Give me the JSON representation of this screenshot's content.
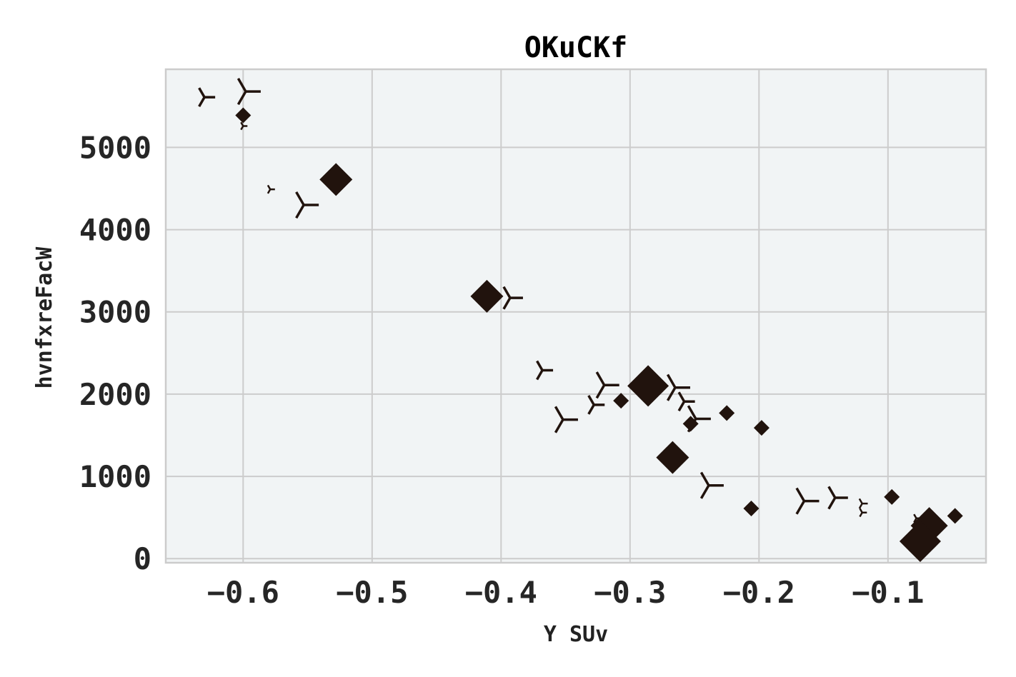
{
  "chart_data": {
    "type": "scatter",
    "title": "OKuCKf",
    "xlabel": "Y SUv",
    "ylabel": "hvnfxreFacW",
    "xlim": [
      -0.66,
      -0.024
    ],
    "ylim": [
      -50,
      5950
    ],
    "xticks": [
      -0.6,
      -0.5,
      -0.4,
      -0.3,
      -0.2,
      -0.1
    ],
    "xtick_labels": [
      "−0.6",
      "−0.5",
      "−0.4",
      "−0.3",
      "−0.2",
      "−0.1"
    ],
    "yticks": [
      0,
      1000,
      2000,
      3000,
      4000,
      5000
    ],
    "ytick_labels": [
      "0",
      "1000",
      "2000",
      "3000",
      "4000",
      "5000"
    ],
    "grid": true,
    "marker_color": "#21130d",
    "series": [
      {
        "marker": "diamond",
        "points": [
          {
            "x": -0.6,
            "y": 5390,
            "size": 1
          },
          {
            "x": -0.528,
            "y": 4610,
            "size": 3
          },
          {
            "x": -0.411,
            "y": 3190,
            "size": 3
          },
          {
            "x": -0.286,
            "y": 2100,
            "size": 4
          },
          {
            "x": -0.307,
            "y": 1920,
            "size": 1
          },
          {
            "x": -0.267,
            "y": 1230,
            "size": 3
          },
          {
            "x": -0.225,
            "y": 1770,
            "size": 1
          },
          {
            "x": -0.253,
            "y": 1640,
            "size": 1
          },
          {
            "x": -0.198,
            "y": 1590,
            "size": 1
          },
          {
            "x": -0.206,
            "y": 610,
            "size": 1
          },
          {
            "x": -0.097,
            "y": 750,
            "size": 1
          },
          {
            "x": -0.048,
            "y": 520,
            "size": 1
          },
          {
            "x": -0.068,
            "y": 400,
            "size": 3.5
          },
          {
            "x": -0.075,
            "y": 210,
            "size": 4
          }
        ]
      },
      {
        "marker": "tri-right",
        "points": [
          {
            "x": -0.63,
            "y": 5610,
            "size": 2
          },
          {
            "x": -0.598,
            "y": 5680,
            "size": 3
          },
          {
            "x": -0.6,
            "y": 5260,
            "size": 0.5
          },
          {
            "x": -0.579,
            "y": 4490,
            "size": 0.6
          },
          {
            "x": -0.553,
            "y": 4300,
            "size": 3
          },
          {
            "x": -0.393,
            "y": 3170,
            "size": 2.5
          },
          {
            "x": -0.368,
            "y": 2290,
            "size": 2
          },
          {
            "x": -0.32,
            "y": 2110,
            "size": 3
          },
          {
            "x": -0.328,
            "y": 1870,
            "size": 2
          },
          {
            "x": -0.352,
            "y": 1690,
            "size": 3
          },
          {
            "x": -0.265,
            "y": 2080,
            "size": 3
          },
          {
            "x": -0.258,
            "y": 1910,
            "size": 2
          },
          {
            "x": -0.249,
            "y": 1700,
            "size": 3
          },
          {
            "x": -0.239,
            "y": 890,
            "size": 3
          },
          {
            "x": -0.165,
            "y": 700,
            "size": 3
          },
          {
            "x": -0.141,
            "y": 740,
            "size": 2.5
          },
          {
            "x": -0.12,
            "y": 670,
            "size": 0.8
          },
          {
            "x": -0.12,
            "y": 560,
            "size": 0.6
          },
          {
            "x": -0.078,
            "y": 490,
            "size": 0.6
          }
        ]
      }
    ]
  }
}
